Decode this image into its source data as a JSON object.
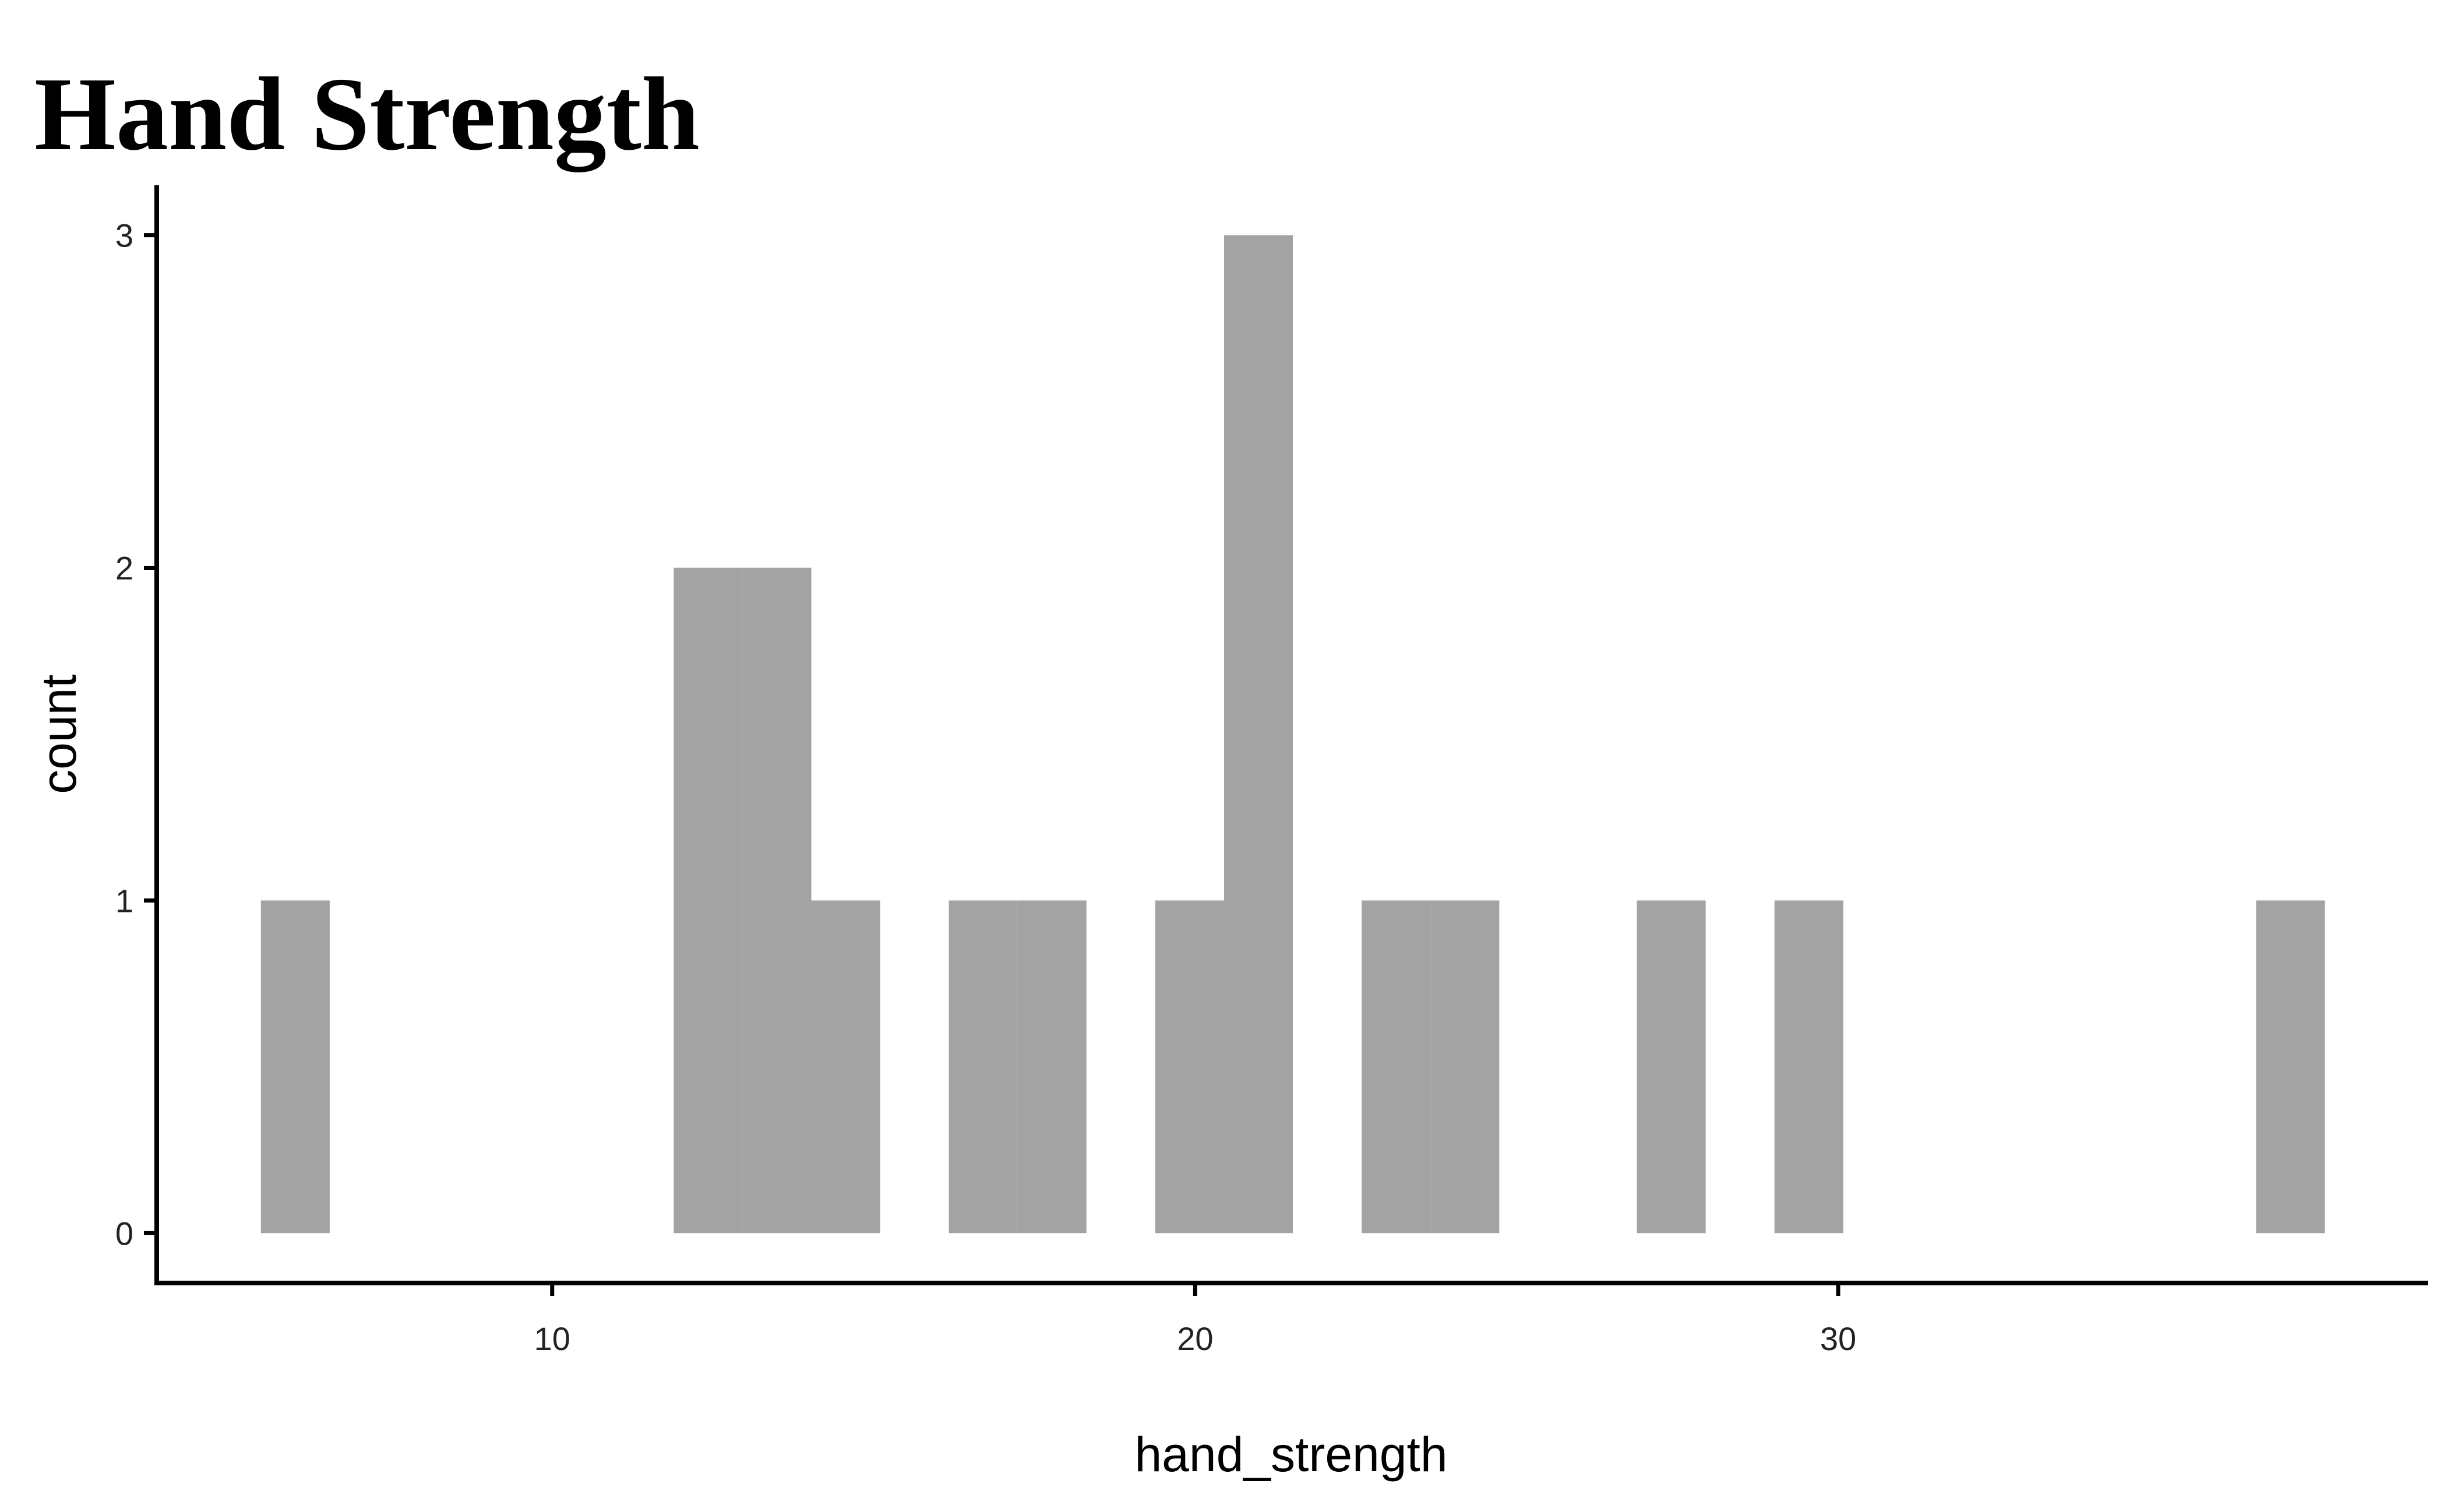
{
  "chart_data": {
    "type": "histogram",
    "title": "Hand Strength",
    "x_label": "hand_strength",
    "y_label": "count",
    "bins": [
      5.47,
      6.54,
      7.61,
      8.68,
      9.75,
      10.82,
      11.89,
      12.96,
      14.03,
      15.1,
      16.17,
      17.24,
      18.31,
      19.38,
      20.45,
      21.52,
      22.59,
      23.66,
      24.73,
      25.8,
      26.87,
      27.94,
      29.01,
      30.08,
      31.15,
      32.22,
      33.29,
      34.36,
      35.43,
      36.5,
      37.57
    ],
    "values": [
      1,
      0,
      0,
      0,
      0,
      0,
      2,
      2,
      1,
      0,
      1,
      1,
      0,
      1,
      3,
      0,
      1,
      1,
      0,
      0,
      1,
      0,
      1,
      0,
      0,
      0,
      0,
      0,
      0,
      1
    ],
    "color": "#a3a3a3",
    "xlim": [
      3.85,
      39.17
    ],
    "xticks": [
      10,
      20,
      30
    ],
    "ylim": [
      -0.15,
      3.15
    ],
    "yticks": [
      0,
      1,
      2,
      3
    ]
  }
}
